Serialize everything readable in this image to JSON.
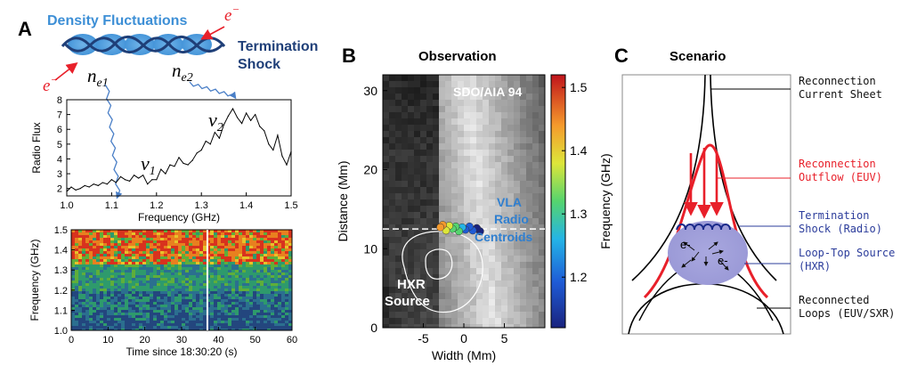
{
  "panel_a": {
    "letter": "A",
    "diagram": {
      "density_label": "Density Fluctuations",
      "termination_label_1": "Termination",
      "termination_label_2": "Shock",
      "electron_1": "e",
      "electron_1_sup": "−",
      "electron_2": "e",
      "electron_2_sup": "−",
      "ne1_base": "n",
      "ne1_sub": "e1",
      "ne2_base": "n",
      "ne2_sub": "e2",
      "nu1_base": "ν",
      "nu1_sub": "1",
      "nu2_base": "ν",
      "nu2_sub": "2"
    }
  },
  "panel_b": {
    "letter": "B",
    "title": "Observation",
    "instrument_label": "SDO/AIA 94",
    "vla_label_1": "VLA",
    "vla_label_2": "Radio",
    "vla_label_3": "Centroids",
    "hxr_label_1": "HXR",
    "hxr_label_2": "Source"
  },
  "panel_c": {
    "letter": "C",
    "title": "Scenario",
    "electron_1": "e-",
    "electron_2": "e-",
    "labels": [
      {
        "line1": "Reconnection",
        "line2": "Current Sheet",
        "color": "#111111"
      },
      {
        "line1": "Reconnection",
        "line2": "Outflow (EUV)",
        "color": "#e8202a"
      },
      {
        "line1": "Termination",
        "line2": "Shock (Radio)",
        "color": "#2b3c9b"
      },
      {
        "line1": "Loop-Top Source",
        "line2": "(HXR)",
        "color": "#2b3c9b"
      },
      {
        "line1": "Reconnected",
        "line2": "Loops (EUV/SXR)",
        "color": "#111111"
      }
    ]
  },
  "chart_data": [
    {
      "type": "line",
      "id": "radio-flux-spectrum",
      "title": "",
      "xlabel": "Frequency (GHz)",
      "ylabel": "Radio Flux",
      "xlim": [
        1.0,
        1.5
      ],
      "ylim": [
        1.5,
        8
      ],
      "xticks": [
        "1.0",
        "1.1",
        "1.2",
        "1.3",
        "1.4",
        "1.5"
      ],
      "yticks": [
        "2",
        "3",
        "4",
        "5",
        "6",
        "7",
        "8"
      ],
      "series": [
        {
          "name": "Radio Flux",
          "x": [
            1.0,
            1.01,
            1.02,
            1.03,
            1.04,
            1.05,
            1.06,
            1.07,
            1.08,
            1.09,
            1.1,
            1.11,
            1.12,
            1.13,
            1.14,
            1.15,
            1.16,
            1.17,
            1.18,
            1.19,
            1.2,
            1.21,
            1.22,
            1.23,
            1.24,
            1.25,
            1.26,
            1.27,
            1.28,
            1.29,
            1.3,
            1.31,
            1.32,
            1.33,
            1.34,
            1.35,
            1.36,
            1.37,
            1.38,
            1.39,
            1.4,
            1.41,
            1.42,
            1.43,
            1.44,
            1.45,
            1.46,
            1.47,
            1.48,
            1.49,
            1.5
          ],
          "y": [
            1.8,
            2.1,
            1.9,
            2.0,
            2.2,
            2.1,
            2.3,
            2.2,
            2.4,
            2.3,
            2.6,
            2.4,
            2.8,
            2.6,
            2.5,
            2.9,
            2.7,
            2.9,
            2.3,
            2.6,
            2.6,
            3.3,
            3.0,
            3.6,
            3.5,
            4.1,
            3.7,
            3.6,
            3.9,
            4.4,
            4.6,
            5.2,
            5.0,
            5.8,
            5.4,
            6.3,
            6.9,
            7.4,
            6.8,
            6.4,
            7.1,
            6.6,
            7.0,
            6.2,
            5.9,
            5.0,
            4.6,
            5.6,
            4.2,
            3.6,
            4.5
          ]
        }
      ],
      "annotations": [
        "ν1 at ~1.16 GHz",
        "ν2 at ~1.37 GHz"
      ]
    },
    {
      "type": "heatmap",
      "id": "dynamic-spectrum",
      "title": "",
      "xlabel": "Time since 18:30:20 (s)",
      "ylabel": "Frequency (GHz)",
      "xlim": [
        0,
        60
      ],
      "ylim": [
        1.0,
        1.5
      ],
      "xticks": [
        "0",
        "10",
        "20",
        "30",
        "40",
        "50",
        "60"
      ],
      "yticks": [
        "1.0",
        "1.1",
        "1.2",
        "1.3",
        "1.4",
        "1.5"
      ],
      "marker_time": 37,
      "colormap": "blue-green-yellow-red"
    },
    {
      "type": "heatmap",
      "id": "aia-image",
      "title": "Observation",
      "xlabel": "Width (Mm)",
      "ylabel": "Distance (Mm)",
      "xlim": [
        -10,
        10
      ],
      "ylim": [
        0,
        32
      ],
      "xticks": [
        "-5",
        "0",
        "5"
      ],
      "yticks": [
        "0",
        "10",
        "20",
        "30"
      ],
      "dashed_line_y": 12.5,
      "colorbar": {
        "label": "Frequency (GHz)",
        "range": [
          1.12,
          1.52
        ],
        "ticks": [
          "1.2",
          "1.3",
          "1.4",
          "1.5"
        ]
      },
      "radio_centroids": [
        {
          "x": -2.9,
          "y": 12.7,
          "freq": 1.5
        },
        {
          "x": -2.6,
          "y": 13.0,
          "freq": 1.47
        },
        {
          "x": -2.2,
          "y": 12.3,
          "freq": 1.44
        },
        {
          "x": -1.8,
          "y": 12.9,
          "freq": 1.41
        },
        {
          "x": -1.4,
          "y": 12.5,
          "freq": 1.38
        },
        {
          "x": -1.0,
          "y": 12.8,
          "freq": 1.35
        },
        {
          "x": -0.6,
          "y": 12.2,
          "freq": 1.32
        },
        {
          "x": -0.2,
          "y": 12.7,
          "freq": 1.29
        },
        {
          "x": 0.2,
          "y": 12.4,
          "freq": 1.26
        },
        {
          "x": 0.7,
          "y": 12.8,
          "freq": 1.23
        },
        {
          "x": 1.1,
          "y": 12.3,
          "freq": 1.2
        },
        {
          "x": 1.6,
          "y": 12.6,
          "freq": 1.17
        },
        {
          "x": 2.0,
          "y": 12.2,
          "freq": 1.15
        }
      ]
    }
  ]
}
